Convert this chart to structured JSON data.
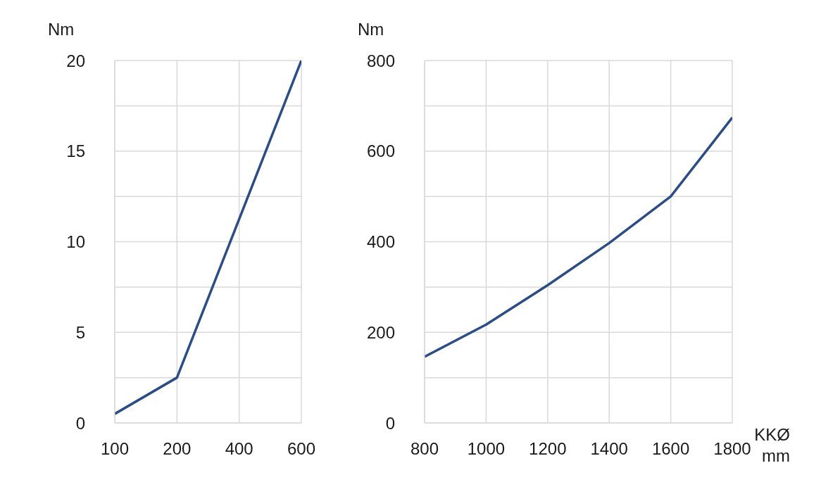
{
  "chart_data": [
    {
      "type": "line",
      "ylabel": "Nm",
      "categories": [
        "100",
        "200",
        "400",
        "600"
      ],
      "series": [
        {
          "color": "#2b4c84",
          "values": [
            0.5,
            2.5,
            11.25,
            20
          ]
        }
      ],
      "ylim": [
        0,
        20
      ],
      "yticks": [
        0,
        {
          "value": 2.5,
          "label": null
        },
        5,
        {
          "value": 7.5,
          "label": null
        },
        10,
        {
          "value": 12.5,
          "label": null
        },
        15,
        {
          "value": 17.5,
          "label": null
        },
        20
      ],
      "grid": true
    },
    {
      "type": "line",
      "ylabel": "Nm",
      "xlabel": "KKØ\nmm",
      "x": [
        800,
        1000,
        1200,
        1400,
        1600,
        1800
      ],
      "series": [
        {
          "color": "#2b4c84",
          "values": [
            146,
            217,
            304,
            397,
            500,
            674
          ]
        }
      ],
      "xlim": [
        800,
        1800
      ],
      "xticks": [
        800,
        1000,
        1200,
        1400,
        1600,
        1800
      ],
      "ylim": [
        0,
        800
      ],
      "yticks": [
        0,
        {
          "value": 100,
          "label": null
        },
        200,
        {
          "value": 300,
          "label": null
        },
        400,
        {
          "value": 500,
          "label": null
        },
        600,
        {
          "value": 700,
          "label": null
        },
        800
      ],
      "grid": true
    }
  ]
}
